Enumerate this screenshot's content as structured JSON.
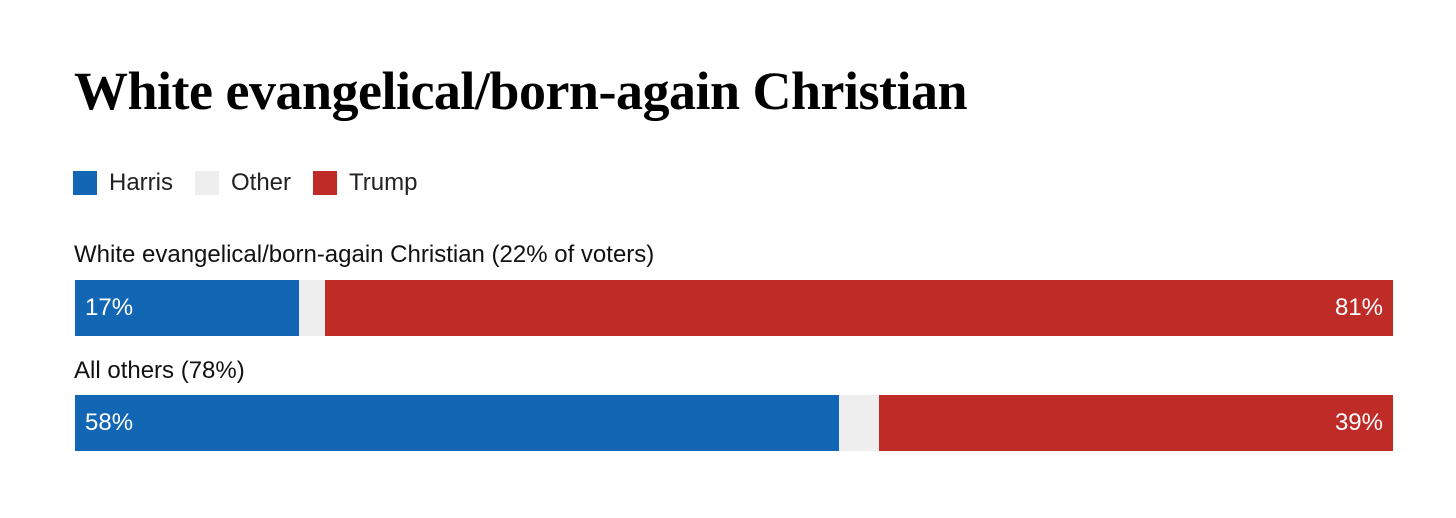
{
  "chart_data": {
    "type": "bar",
    "stacked": true,
    "orientation": "horizontal",
    "title": "White evangelical/born-again Christian",
    "legend": [
      {
        "label": "Harris",
        "color": "#1366b3"
      },
      {
        "label": "Other",
        "color": "#eeeeee"
      },
      {
        "label": "Trump",
        "color": "#bf2b27"
      }
    ],
    "rows": [
      {
        "label": "White evangelical/born-again Christian (22% of voters)",
        "values": {
          "Harris": 17,
          "Other": 2,
          "Trump": 81
        },
        "labels": {
          "Harris": "17%",
          "Trump": "81%"
        }
      },
      {
        "label": "All others (78%)",
        "values": {
          "Harris": 58,
          "Other": 3,
          "Trump": 39
        },
        "labels": {
          "Harris": "58%",
          "Trump": "39%"
        }
      }
    ],
    "xlim": [
      0,
      100
    ]
  }
}
